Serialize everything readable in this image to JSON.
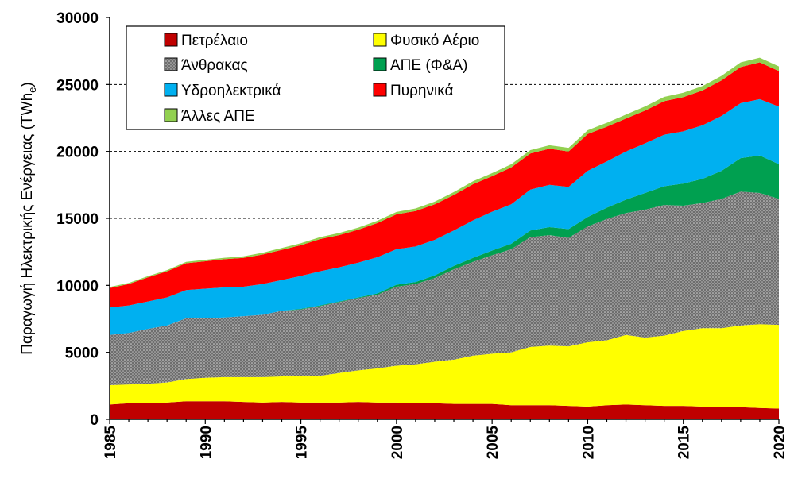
{
  "chart_data": {
    "type": "area",
    "stacked": true,
    "title": "",
    "ylabel": "Παραγωγή Ηλεκτρικής Ενέργειας (TWh",
    "ylabel_sub": "e",
    "ylabel_close": ")",
    "xlabel": "",
    "xlim": [
      1985,
      2020
    ],
    "ylim": [
      0,
      30000
    ],
    "xticks": [
      "1985",
      "1990",
      "1995",
      "2000",
      "2005",
      "2010",
      "2015",
      "2020"
    ],
    "yticks": [
      "0",
      "5000",
      "10000",
      "15000",
      "20000",
      "25000",
      "30000"
    ],
    "gridlines_y": [
      15000,
      20000,
      25000
    ],
    "legend_position": "top-left inside",
    "x": [
      1985,
      1986,
      1987,
      1988,
      1989,
      1990,
      1991,
      1992,
      1993,
      1994,
      1995,
      1996,
      1997,
      1998,
      1999,
      2000,
      2001,
      2002,
      2003,
      2004,
      2005,
      2006,
      2007,
      2008,
      2009,
      2010,
      2011,
      2012,
      2013,
      2014,
      2015,
      2016,
      2017,
      2018,
      2019,
      2020
    ],
    "series": [
      {
        "name": "Πετρέλαιο",
        "color": "#c00000",
        "pattern": "none",
        "values": [
          1100,
          1200,
          1200,
          1250,
          1350,
          1350,
          1350,
          1300,
          1250,
          1300,
          1250,
          1250,
          1250,
          1300,
          1250,
          1250,
          1200,
          1200,
          1150,
          1150,
          1150,
          1050,
          1050,
          1050,
          1000,
          950,
          1050,
          1100,
          1050,
          1000,
          1000,
          950,
          900,
          900,
          850,
          800
        ]
      },
      {
        "name": "Φυσικό Αέριο",
        "color": "#ffff00",
        "pattern": "none",
        "values": [
          1450,
          1400,
          1450,
          1500,
          1650,
          1750,
          1800,
          1850,
          1900,
          1900,
          1950,
          2000,
          2200,
          2350,
          2550,
          2750,
          2900,
          3100,
          3300,
          3600,
          3750,
          3950,
          4350,
          4450,
          4450,
          4800,
          4850,
          5200,
          5050,
          5250,
          5600,
          5850,
          5900,
          6100,
          6250,
          6250
        ]
      },
      {
        "name": "Άνθρακας",
        "color": "#777777",
        "pattern": "dots",
        "values": [
          3750,
          3850,
          4100,
          4250,
          4550,
          4450,
          4450,
          4550,
          4650,
          4900,
          5000,
          5200,
          5300,
          5400,
          5500,
          5900,
          6000,
          6250,
          6750,
          7000,
          7350,
          7700,
          8200,
          8250,
          8100,
          8650,
          9050,
          9100,
          9550,
          9750,
          9350,
          9350,
          9650,
          10000,
          9800,
          9400
        ]
      },
      {
        "name": "ΑΠΕ (Φ&Α)",
        "color": "#00a050",
        "pattern": "none",
        "values": [
          0,
          0,
          0,
          0,
          0,
          0,
          0,
          0,
          0,
          0,
          50,
          50,
          50,
          50,
          100,
          150,
          150,
          200,
          250,
          300,
          350,
          400,
          500,
          600,
          650,
          700,
          850,
          1000,
          1250,
          1400,
          1650,
          1800,
          2100,
          2500,
          2800,
          2600
        ]
      },
      {
        "name": "Υδροηλεκτρικά",
        "color": "#00b0f0",
        "pattern": "none",
        "values": [
          2050,
          2050,
          2050,
          2100,
          2100,
          2200,
          2250,
          2200,
          2300,
          2300,
          2450,
          2550,
          2550,
          2600,
          2700,
          2650,
          2650,
          2650,
          2650,
          2800,
          2900,
          2950,
          3050,
          3150,
          3150,
          3450,
          3450,
          3600,
          3700,
          3850,
          3900,
          4000,
          4100,
          4100,
          4200,
          4300
        ]
      },
      {
        "name": "Πυρηνικά",
        "color": "#ff0000",
        "pattern": "none",
        "values": [
          1450,
          1600,
          1800,
          1950,
          2000,
          2050,
          2100,
          2150,
          2200,
          2250,
          2300,
          2400,
          2400,
          2450,
          2550,
          2600,
          2650,
          2650,
          2650,
          2700,
          2650,
          2750,
          2700,
          2700,
          2650,
          2750,
          2600,
          2450,
          2450,
          2500,
          2550,
          2600,
          2650,
          2700,
          2750,
          2650
        ]
      },
      {
        "name": "Άλλες ΑΠΕ",
        "color": "#92d050",
        "pattern": "none",
        "values": [
          80,
          80,
          90,
          90,
          100,
          110,
          110,
          120,
          130,
          140,
          150,
          150,
          160,
          160,
          170,
          180,
          190,
          200,
          210,
          220,
          230,
          240,
          250,
          260,
          270,
          280,
          290,
          300,
          310,
          320,
          330,
          330,
          340,
          350,
          350,
          350
        ]
      }
    ],
    "legend_order": [
      0,
      1,
      2,
      3,
      4,
      5,
      6
    ]
  }
}
